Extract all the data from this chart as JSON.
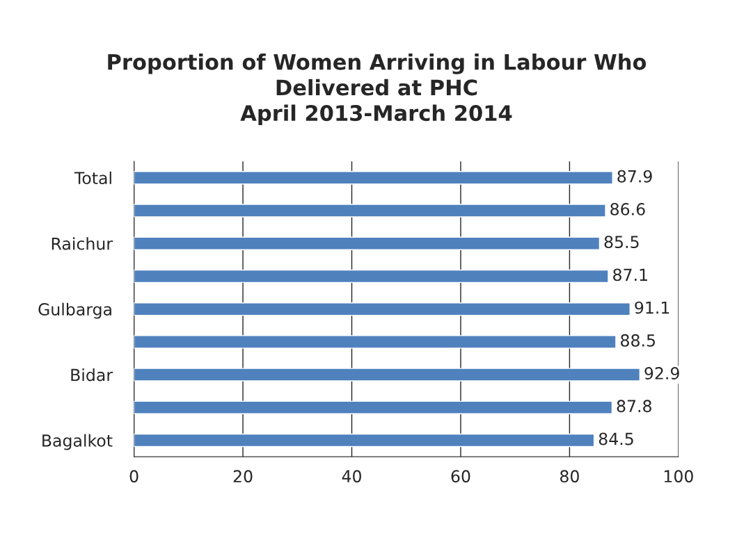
{
  "chart_data": {
    "type": "bar",
    "orientation": "horizontal",
    "title": "Proportion of Women Arriving in Labour Who\nDelivered at PHC",
    "subtitle": "April 2013-March 2014",
    "categories": [
      "Total",
      null,
      "Raichur",
      null,
      "Gulbarga",
      null,
      "Bidar",
      null,
      "Bagalkot"
    ],
    "values": [
      87.9,
      86.6,
      85.5,
      87.1,
      91.1,
      88.5,
      92.9,
      87.8,
      84.5
    ],
    "color": "#4f81bd",
    "xlim": [
      0,
      100
    ],
    "xticks": [
      0,
      20,
      40,
      60,
      80,
      100
    ],
    "grid": "x",
    "data_labels": true
  }
}
